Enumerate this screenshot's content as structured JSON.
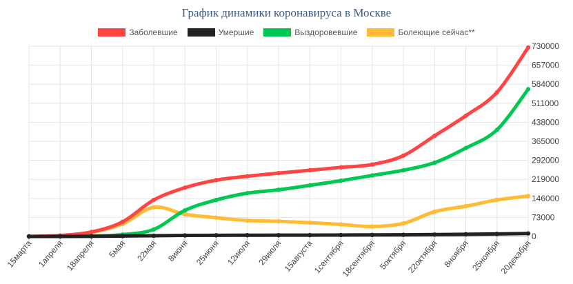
{
  "chart_data": {
    "type": "line",
    "title": "График динамики коронавируса в Москве",
    "x_categories": [
      "15марта",
      "1апреля",
      "18апреля",
      "5мая",
      "22мая",
      "8июня",
      "25июня",
      "12июля",
      "29июля",
      "15августа",
      "1сентября",
      "18сентября",
      "5октября",
      "22октября",
      "8ноября",
      "25ноября",
      "20декабря"
    ],
    "y_ticks": [
      0,
      73000,
      146000,
      219000,
      292000,
      365000,
      438000,
      511000,
      584000,
      657000,
      730000
    ],
    "ylim": [
      0,
      730000
    ],
    "grid": true,
    "legend_position": "top",
    "series": [
      {
        "name": "Заболевшие",
        "color": "#ff4444",
        "values": [
          0,
          3500,
          17000,
          56000,
          140000,
          187000,
          216000,
          231000,
          243000,
          254000,
          265000,
          276000,
          310000,
          386000,
          463000,
          553000,
          725000
        ]
      },
      {
        "name": "Умершие",
        "color": "#222222",
        "values": [
          0,
          100,
          500,
          1500,
          2800,
          3900,
          4400,
          4600,
          4800,
          5100,
          5400,
          5800,
          6400,
          7200,
          8400,
          9700,
          11500
        ]
      },
      {
        "name": "Выздоровевшие",
        "color": "#00c853",
        "values": [
          0,
          200,
          1500,
          7000,
          27000,
          100000,
          140000,
          166000,
          179000,
          196000,
          214000,
          234000,
          254000,
          283000,
          339000,
          409000,
          565000
        ]
      },
      {
        "name": "Болеющие сейчас**",
        "color": "#ffbb33",
        "values": [
          0,
          3200,
          15000,
          48000,
          112000,
          85000,
          72000,
          61000,
          58000,
          53000,
          46000,
          38000,
          50000,
          95000,
          116000,
          140000,
          155000
        ]
      }
    ]
  }
}
